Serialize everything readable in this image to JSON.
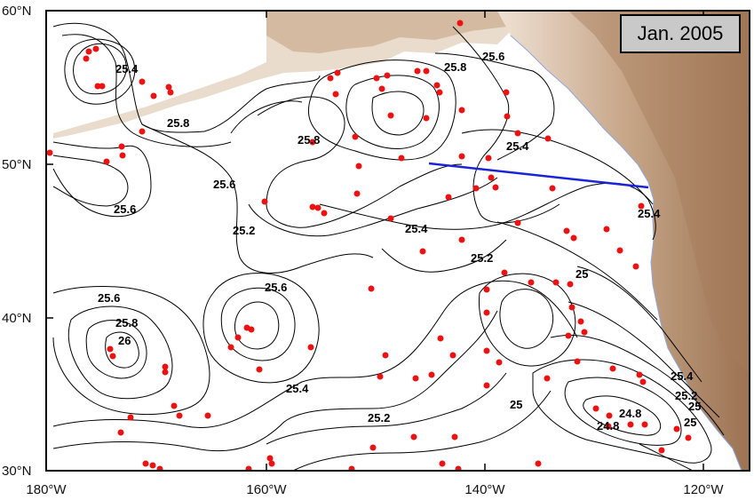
{
  "map": {
    "date_label": "Jan. 2005",
    "lat_ticks": [
      "60°N",
      "50°N",
      "40°N",
      "30°N"
    ],
    "lon_ticks": [
      "180°W",
      "160°W",
      "140°W",
      "120°W"
    ],
    "contour_labels": [
      "25.4",
      "25.6",
      "25.8",
      "25.8",
      "25.4",
      "25.6",
      "25.8",
      "25.6",
      "25.4",
      "25.2",
      "25",
      "25.6",
      "25.8",
      "26",
      "25.6",
      "25.4",
      "25.2",
      "25",
      "25",
      "24.8",
      "24.8",
      "25",
      "25.2",
      "25.4",
      "25.4",
      "25.2"
    ],
    "colors": {
      "contour": "#000000",
      "float": "#ee1111",
      "transect": "#1a24d6",
      "land_light": "#e6d3bf",
      "land_dark": "#a37a58",
      "ocean": "#ffffff"
    },
    "floats_count_note": "",
    "transect": {
      "start": [
        "145°W",
        "50°N"
      ],
      "end": [
        "125°W",
        "48.5°N"
      ]
    }
  }
}
